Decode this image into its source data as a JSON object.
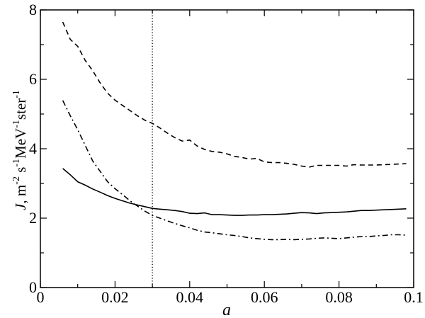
{
  "chart_data": {
    "type": "line",
    "title": "",
    "xlabel": "a",
    "ylabel": "J, m^-2 s^-1 MeV^-1 ster^-1",
    "ylabel_parts": {
      "symbol": "J",
      "text": ", m",
      "exp1": "-2",
      "s": " s",
      "exp2": "-1",
      "mev": "MeV",
      "exp3": "-1",
      "ster": "ster",
      "exp4": "-1"
    },
    "xlim": [
      0,
      0.1
    ],
    "ylim": [
      0,
      8
    ],
    "xticks": [
      0,
      0.02,
      0.04,
      0.06,
      0.08,
      0.1
    ],
    "xtick_labels": [
      "0",
      "0.02",
      "0.04",
      "0.06",
      "0.08",
      "0.1"
    ],
    "xminor_ticks": [
      0.01,
      0.03,
      0.05,
      0.07,
      0.09
    ],
    "yticks": [
      0,
      2,
      4,
      6,
      8
    ],
    "ytick_labels": [
      "0",
      "2",
      "4",
      "6",
      "8"
    ],
    "yminor_ticks": [
      1,
      3,
      5,
      7
    ],
    "grid": false,
    "legend": null,
    "vertical_reference_line": {
      "x": 0.03,
      "style": "dotted"
    },
    "x": [
      0.006,
      0.008,
      0.01,
      0.012,
      0.014,
      0.016,
      0.018,
      0.02,
      0.022,
      0.024,
      0.026,
      0.028,
      0.03,
      0.032,
      0.034,
      0.036,
      0.038,
      0.04,
      0.042,
      0.044,
      0.046,
      0.048,
      0.05,
      0.052,
      0.054,
      0.056,
      0.058,
      0.06,
      0.062,
      0.064,
      0.066,
      0.068,
      0.07,
      0.072,
      0.074,
      0.076,
      0.078,
      0.08,
      0.082,
      0.084,
      0.086,
      0.088,
      0.09,
      0.092,
      0.094,
      0.096,
      0.098
    ],
    "series": [
      {
        "name": "dashed (upper)",
        "style": "dashed",
        "values": [
          7.65,
          7.15,
          6.95,
          6.55,
          6.25,
          5.9,
          5.6,
          5.4,
          5.25,
          5.1,
          4.95,
          4.82,
          4.73,
          4.6,
          4.45,
          4.32,
          4.22,
          4.25,
          4.08,
          3.98,
          3.92,
          3.9,
          3.85,
          3.78,
          3.75,
          3.7,
          3.72,
          3.62,
          3.6,
          3.6,
          3.58,
          3.55,
          3.5,
          3.47,
          3.52,
          3.52,
          3.52,
          3.52,
          3.5,
          3.54,
          3.53,
          3.53,
          3.53,
          3.54,
          3.55,
          3.56,
          3.57
        ]
      },
      {
        "name": "solid (middle)",
        "style": "solid",
        "values": [
          3.43,
          3.25,
          3.05,
          2.95,
          2.84,
          2.75,
          2.65,
          2.57,
          2.5,
          2.43,
          2.38,
          2.33,
          2.28,
          2.26,
          2.24,
          2.22,
          2.19,
          2.14,
          2.13,
          2.15,
          2.1,
          2.1,
          2.09,
          2.08,
          2.08,
          2.09,
          2.09,
          2.1,
          2.1,
          2.11,
          2.12,
          2.14,
          2.16,
          2.15,
          2.13,
          2.15,
          2.16,
          2.17,
          2.18,
          2.2,
          2.22,
          2.22,
          2.23,
          2.24,
          2.25,
          2.26,
          2.27
        ]
      },
      {
        "name": "dash-dot (lower)",
        "style": "dashdot",
        "values": [
          5.39,
          4.95,
          4.55,
          4.1,
          3.65,
          3.35,
          3.05,
          2.85,
          2.68,
          2.5,
          2.35,
          2.2,
          2.08,
          2.0,
          1.92,
          1.85,
          1.78,
          1.72,
          1.65,
          1.6,
          1.58,
          1.55,
          1.52,
          1.5,
          1.47,
          1.43,
          1.41,
          1.39,
          1.38,
          1.38,
          1.39,
          1.38,
          1.39,
          1.4,
          1.42,
          1.43,
          1.42,
          1.41,
          1.43,
          1.45,
          1.47,
          1.47,
          1.49,
          1.5,
          1.52,
          1.52,
          1.51
        ]
      }
    ]
  }
}
